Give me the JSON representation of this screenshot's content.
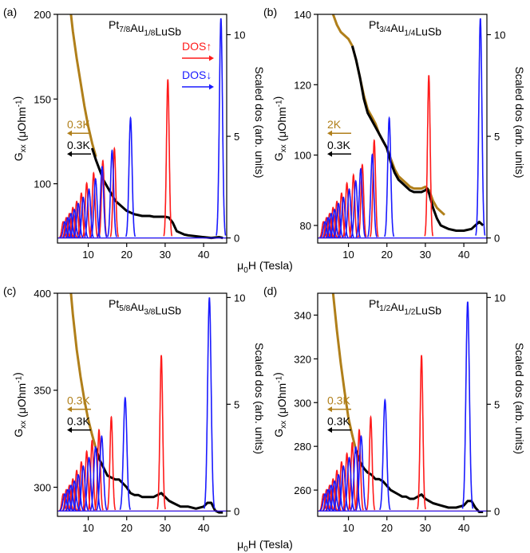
{
  "figure": {
    "shared_xlabel_prefix": "μ",
    "shared_xlabel_sub": "0",
    "shared_xlabel_rest": "H (Tesla)"
  },
  "colors": {
    "up": "#ff1a1a",
    "down": "#1a1aff",
    "black": "#000000",
    "gold": "#b07f1a"
  },
  "chart_data": [
    {
      "type": "line",
      "panel_label": "(a)",
      "title_parts": [
        [
          "Pt",
          ""
        ],
        [
          "7/8",
          "sub"
        ],
        [
          "Au",
          ""
        ],
        [
          "1/8",
          "sub"
        ],
        [
          "LuSb",
          ""
        ]
      ],
      "ylabel_left_parts": [
        [
          "G",
          ""
        ],
        [
          "xx",
          "sub"
        ],
        [
          " (μOhm",
          ""
        ],
        [
          "-1",
          "sup"
        ],
        [
          ")",
          ""
        ]
      ],
      "ylabel_right": "Scaled dos (arb. units)",
      "xlim": [
        2,
        46
      ],
      "ylim_left": [
        65,
        200
      ],
      "ylim_right": [
        -0.25,
        11
      ],
      "xticks": [
        10,
        20,
        30,
        40
      ],
      "yticks_left": [
        100,
        150,
        200
      ],
      "yticks_right": [
        0,
        5,
        10
      ],
      "legend_dos": [
        {
          "text": "DOS↑",
          "color": "up"
        },
        {
          "text": "DOS↓",
          "color": "down"
        }
      ],
      "arrow_labels": [
        {
          "text": "0.3K",
          "color": "gold"
        },
        {
          "text": "0.3K",
          "color": "black"
        }
      ],
      "series": [
        {
          "type": "curve",
          "color": "gold",
          "x": [
            5.5,
            6,
            7,
            8,
            9,
            10,
            11,
            12
          ],
          "y": [
            200,
            190,
            174,
            160,
            146,
            134,
            124,
            116
          ]
        },
        {
          "type": "curve",
          "color": "black",
          "x": [
            11,
            12,
            13,
            14,
            15,
            16,
            17,
            18,
            19,
            20,
            21,
            22,
            23,
            24,
            25,
            26,
            27,
            28,
            29,
            30,
            31,
            32,
            33,
            34,
            35,
            36,
            38,
            40,
            42,
            44,
            45
          ],
          "y": [
            121,
            114,
            108,
            102,
            98,
            94,
            90,
            88,
            86,
            84,
            83,
            82,
            81.5,
            81,
            81,
            81,
            80.5,
            80.5,
            80.5,
            80.5,
            80,
            77,
            72,
            71,
            70,
            69.5,
            69,
            68.5,
            68,
            68.5,
            68
          ]
        },
        {
          "type": "peaks",
          "name": "DOS↑",
          "color": "up",
          "width": 0.35,
          "x": [
            3.5,
            4.3,
            5.1,
            6.0,
            7.0,
            8.2,
            9.6,
            11.4,
            13.8,
            16.8,
            30.7
          ],
          "y": [
            0.8,
            1.0,
            1.2,
            1.5,
            1.8,
            2.2,
            2.7,
            3.2,
            3.8,
            4.4,
            7.8
          ]
        },
        {
          "type": "peaks",
          "name": "DOS↓",
          "color": "down",
          "width": 0.4,
          "x": [
            3.9,
            4.7,
            5.5,
            6.4,
            7.4,
            8.7,
            10.2,
            11.9,
            13.6,
            16.2,
            21.0,
            44.5
          ],
          "y": [
            0.8,
            1.0,
            1.2,
            1.4,
            1.7,
            2.0,
            2.4,
            2.9,
            3.5,
            4.3,
            5.9,
            10.8
          ]
        }
      ]
    },
    {
      "type": "line",
      "panel_label": "(b)",
      "title_parts": [
        [
          "Pt",
          ""
        ],
        [
          "3/4",
          "sub"
        ],
        [
          "Au",
          ""
        ],
        [
          "1/4",
          "sub"
        ],
        [
          "LuSb",
          ""
        ]
      ],
      "ylabel_left_parts": [
        [
          "G",
          ""
        ],
        [
          "xx",
          "sub"
        ],
        [
          " (μOhm",
          ""
        ],
        [
          "-1",
          "sup"
        ],
        [
          ")",
          ""
        ]
      ],
      "ylabel_right": "Scaled dos (arb. units)",
      "xlim": [
        2,
        46
      ],
      "ylim_left": [
        75,
        140
      ],
      "ylim_right": [
        -0.25,
        11
      ],
      "xticks": [
        10,
        20,
        30,
        40
      ],
      "yticks_left": [
        80,
        100,
        120,
        140
      ],
      "yticks_right": [
        0,
        5,
        10
      ],
      "legend_dos": [],
      "arrow_labels": [
        {
          "text": "2K",
          "color": "gold"
        },
        {
          "text": "0.3K",
          "color": "black"
        }
      ],
      "series": [
        {
          "type": "curve",
          "color": "gold",
          "x": [
            6,
            7,
            8,
            9,
            10,
            11,
            12,
            13,
            14,
            15,
            16,
            17,
            18,
            19,
            20,
            21,
            22,
            23,
            24,
            25,
            26,
            27,
            28,
            29,
            30,
            31,
            32,
            33,
            34,
            35
          ],
          "y": [
            140,
            137,
            135,
            134,
            133,
            131,
            127,
            122,
            117,
            113,
            111,
            109,
            106,
            104,
            102,
            99,
            96,
            94,
            93,
            92,
            91,
            90.5,
            90.5,
            90.5,
            91,
            90,
            87,
            85,
            84,
            83
          ]
        },
        {
          "type": "curve",
          "color": "black",
          "x": [
            11,
            12,
            13,
            14,
            15,
            16,
            17,
            18,
            19,
            20,
            21,
            22,
            23,
            24,
            25,
            26,
            27,
            28,
            29,
            30,
            30.5,
            31,
            32,
            33,
            34,
            35,
            36,
            38,
            40,
            42,
            43,
            44,
            45
          ],
          "y": [
            131,
            127,
            122,
            116,
            112,
            110,
            108,
            106,
            104,
            102,
            98,
            95,
            93,
            92,
            91,
            90,
            89.5,
            89.5,
            89.5,
            90,
            90.5,
            89,
            85,
            82,
            80,
            79.5,
            79,
            78.5,
            78.5,
            79,
            80,
            81,
            80
          ]
        },
        {
          "type": "peaks",
          "name": "DOS↑",
          "color": "up",
          "width": 0.35,
          "x": [
            3.5,
            4.3,
            5.1,
            6.0,
            7.0,
            8.2,
            9.6,
            11.3,
            13.6,
            16.7,
            30.9
          ],
          "y": [
            0.8,
            1.0,
            1.2,
            1.5,
            1.8,
            2.2,
            2.7,
            3.1,
            3.6,
            4.8,
            8.0
          ]
        },
        {
          "type": "peaks",
          "name": "DOS↓",
          "color": "down",
          "width": 0.4,
          "x": [
            3.9,
            4.7,
            5.5,
            6.4,
            7.4,
            8.7,
            10.2,
            11.9,
            13.2,
            16.2,
            20.6,
            44.3
          ],
          "y": [
            0.8,
            1.0,
            1.2,
            1.4,
            1.7,
            2.0,
            2.4,
            2.8,
            3.4,
            4.1,
            5.9,
            10.8
          ]
        }
      ]
    },
    {
      "type": "line",
      "panel_label": "(c)",
      "title_parts": [
        [
          "Pt",
          ""
        ],
        [
          "5/8",
          "sub"
        ],
        [
          "Au",
          ""
        ],
        [
          "3/8",
          "sub"
        ],
        [
          "LuSb",
          ""
        ]
      ],
      "ylabel_left_parts": [
        [
          "G",
          ""
        ],
        [
          "xx",
          "sub"
        ],
        [
          " (μOhm",
          ""
        ],
        [
          "-1",
          "sup"
        ],
        [
          ")",
          ""
        ]
      ],
      "ylabel_right": "Scaled dos (arb. units)",
      "xlim": [
        2,
        46
      ],
      "ylim_left": [
        285,
        400
      ],
      "ylim_right": [
        -0.25,
        10.2
      ],
      "xticks": [
        10,
        20,
        30,
        40
      ],
      "yticks_left": [
        300,
        350,
        400
      ],
      "yticks_right": [
        0,
        5,
        10
      ],
      "legend_dos": [],
      "arrow_labels": [
        {
          "text": "0.3K",
          "color": "gold"
        },
        {
          "text": "0.3K",
          "color": "black"
        }
      ],
      "series": [
        {
          "type": "curve",
          "color": "gold",
          "x": [
            5.5,
            6,
            7,
            8,
            9,
            10,
            11,
            12,
            12.5
          ],
          "y": [
            400,
            389,
            371,
            357,
            345,
            335,
            327,
            320,
            316
          ]
        },
        {
          "type": "curve",
          "color": "black",
          "x": [
            12,
            13,
            14,
            15,
            16,
            17,
            18,
            19,
            20,
            21,
            22,
            23,
            24,
            25,
            26,
            27,
            28,
            29,
            30,
            31,
            32,
            34,
            36,
            38,
            40,
            41,
            42,
            43,
            44,
            45
          ],
          "y": [
            320,
            314,
            310,
            306,
            305,
            304,
            304,
            302,
            300,
            297,
            296,
            296,
            295,
            295,
            295,
            295,
            296,
            297,
            295,
            293,
            292,
            290,
            290,
            289,
            290,
            292,
            292,
            288,
            287,
            287
          ]
        },
        {
          "type": "peaks",
          "name": "DOS↑",
          "color": "up",
          "width": 0.35,
          "x": [
            3.5,
            4.3,
            5.1,
            6.0,
            7.0,
            8.2,
            9.6,
            11.0,
            12.8,
            16.0,
            29.0
          ],
          "y": [
            0.8,
            1.0,
            1.2,
            1.5,
            1.9,
            2.3,
            2.8,
            3.3,
            3.8,
            4.4,
            7.3
          ]
        },
        {
          "type": "peaks",
          "name": "DOS↓",
          "color": "down",
          "width": 0.45,
          "x": [
            3.9,
            4.7,
            5.5,
            6.4,
            7.4,
            8.7,
            10.2,
            11.9,
            13.5,
            19.6,
            41.5
          ],
          "y": [
            0.8,
            1.0,
            1.2,
            1.4,
            1.7,
            2.1,
            2.5,
            3.0,
            3.5,
            5.3,
            10.0
          ]
        }
      ]
    },
    {
      "type": "line",
      "panel_label": "(d)",
      "title_parts": [
        [
          "Pt",
          ""
        ],
        [
          "1/2",
          "sub"
        ],
        [
          "Au",
          ""
        ],
        [
          "1/2",
          "sub"
        ],
        [
          "LuSb",
          ""
        ]
      ],
      "ylabel_left_parts": [
        [
          "G",
          ""
        ],
        [
          "xx",
          "sub"
        ],
        [
          " (μOhm",
          ""
        ],
        [
          "-1",
          "sup"
        ],
        [
          ")",
          ""
        ]
      ],
      "ylabel_right": "Scaled dos (arb. units)",
      "xlim": [
        2,
        46
      ],
      "ylim_left": [
        248,
        350
      ],
      "ylim_right": [
        -0.25,
        10.2
      ],
      "xticks": [
        10,
        20,
        30,
        40
      ],
      "yticks_left": [
        260,
        280,
        300,
        320,
        340
      ],
      "yticks_right": [
        0,
        5,
        10
      ],
      "legend_dos": [],
      "arrow_labels": [
        {
          "text": "0.3K",
          "color": "gold"
        },
        {
          "text": "0.3K",
          "color": "black"
        }
      ],
      "series": [
        {
          "type": "curve",
          "color": "gold",
          "x": [
            6,
            7,
            8,
            9,
            10,
            11,
            12,
            12.5
          ],
          "y": [
            350,
            333,
            318,
            305,
            293,
            285,
            278,
            275
          ]
        },
        {
          "type": "curve",
          "color": "black",
          "x": [
            12,
            13,
            14,
            15,
            16,
            17,
            18,
            19,
            20,
            21,
            22,
            23,
            24,
            25,
            26,
            27,
            28,
            29,
            30,
            31,
            32,
            34,
            36,
            38,
            40,
            41,
            42,
            43,
            44,
            45
          ],
          "y": [
            278,
            273,
            270,
            268,
            267,
            265,
            265,
            264,
            262,
            260,
            259,
            258,
            257,
            257,
            256,
            256,
            257,
            258,
            256,
            255,
            254,
            253,
            252,
            252,
            253,
            255,
            255,
            252,
            250,
            250
          ]
        },
        {
          "type": "peaks",
          "name": "DOS↑",
          "color": "up",
          "width": 0.35,
          "x": [
            3.5,
            4.3,
            5.1,
            6.0,
            7.0,
            8.2,
            9.6,
            11.0,
            12.8,
            15.8,
            29.0
          ],
          "y": [
            0.8,
            1.0,
            1.2,
            1.5,
            1.9,
            2.3,
            2.7,
            3.2,
            3.8,
            4.4,
            7.3
          ]
        },
        {
          "type": "peaks",
          "name": "DOS↓",
          "color": "down",
          "width": 0.45,
          "x": [
            3.9,
            4.7,
            5.5,
            6.4,
            7.4,
            8.7,
            10.2,
            11.9,
            13.3,
            19.5,
            41.0
          ],
          "y": [
            0.8,
            1.0,
            1.2,
            1.4,
            1.7,
            2.1,
            2.5,
            3.0,
            3.5,
            5.2,
            9.8
          ]
        }
      ]
    }
  ]
}
